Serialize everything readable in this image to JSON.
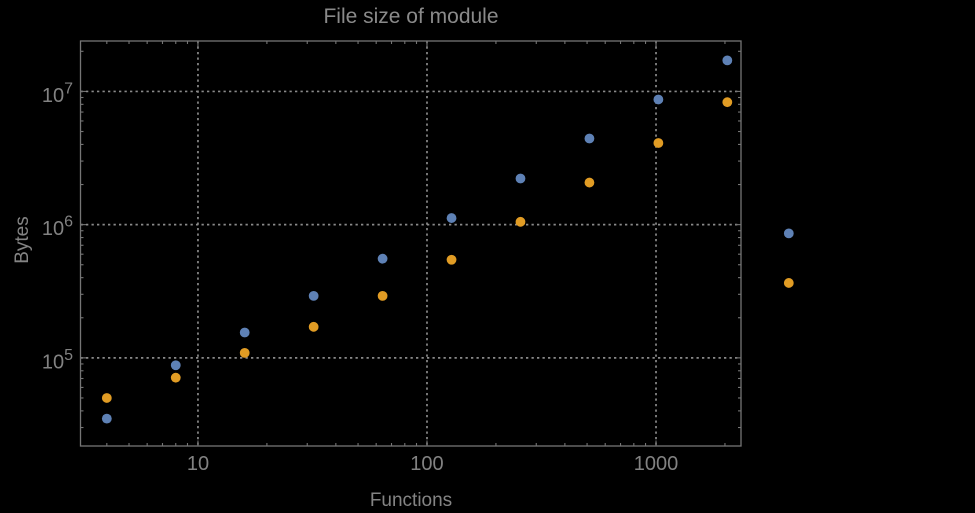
{
  "chart": {
    "title": "File size of module",
    "x_axis_label": "Functions",
    "y_axis_label": "Bytes"
  },
  "colors": {
    "background": "#000000",
    "frame": "#757575",
    "grid": "#8a8a8a",
    "text": "#828282",
    "blue_series": "#5E81B5",
    "orange_series": "#E19C24"
  },
  "chart_data": {
    "type": "scatter",
    "title": "File size of module",
    "xlabel": "Functions",
    "ylabel": "Bytes",
    "x_scale": "log10",
    "y_scale": "log10",
    "grid": {
      "style": "dotted",
      "at": "major-ticks"
    },
    "legend": "none",
    "xlim": [
      3.07,
      2350
    ],
    "ylim": [
      21800,
      23900000
    ],
    "x": [
      4,
      8,
      16,
      32,
      64,
      128,
      256,
      512,
      1024,
      2048,
      3800
    ],
    "series": [
      {
        "name": "blue",
        "color": "#5E81B5",
        "values": [
          35000,
          88000,
          155000,
          292000,
          555000,
          1120000,
          2220000,
          4430000,
          8700000,
          17100000,
          860000
        ]
      },
      {
        "name": "orange",
        "color": "#E19C24",
        "values": [
          50000,
          71000,
          109000,
          171000,
          292000,
          545000,
          1050000,
          2070000,
          4100000,
          8300000,
          365000
        ]
      }
    ],
    "x_major_ticks": [
      {
        "value": 10,
        "label": "10"
      },
      {
        "value": 100,
        "label": "100"
      },
      {
        "value": 1000,
        "label": "1000"
      }
    ],
    "y_major_ticks": [
      {
        "value": 100000,
        "label": "10^5",
        "base": "10",
        "exp": "5"
      },
      {
        "value": 1000000,
        "label": "10^6",
        "base": "10",
        "exp": "6"
      },
      {
        "value": 10000000,
        "label": "10^7",
        "base": "10",
        "exp": "7"
      }
    ]
  }
}
